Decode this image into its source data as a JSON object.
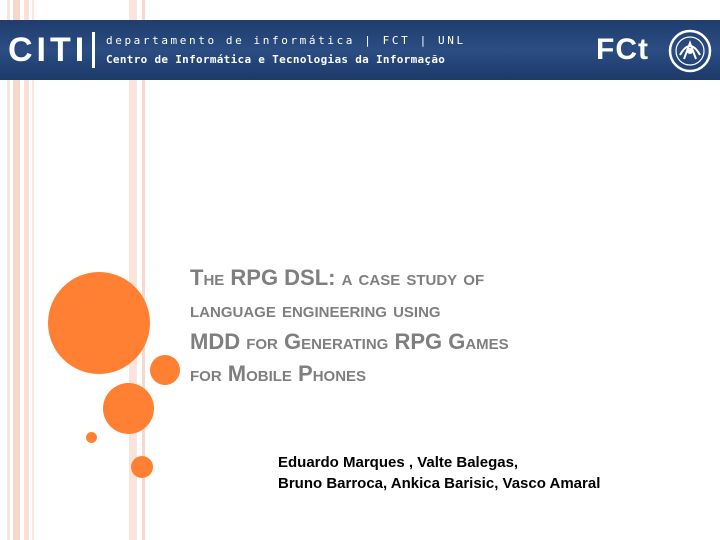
{
  "header": {
    "logo_left": "CITI",
    "line1": "departamento de informática | FCT | UNL",
    "line2": "Centro de Informática e Tecnologias da Informação",
    "logo_right": "FCt"
  },
  "title_lines": [
    "The RPG DSL: a case study of",
    "language engineering using",
    "MDD for Generating RPG Games",
    "for Mobile Phones"
  ],
  "authors": [
    "Eduardo Marques , Valte Balegas,",
    "Bruno Barroca, Ankica Barisic, Vasco Amaral"
  ],
  "colors": {
    "banner": "#24467a",
    "accent_circles": "#ff8033",
    "stripes": "#f9dcd2",
    "title": "#7f7f7f"
  },
  "icons": {
    "seal": "university-seal-icon"
  }
}
